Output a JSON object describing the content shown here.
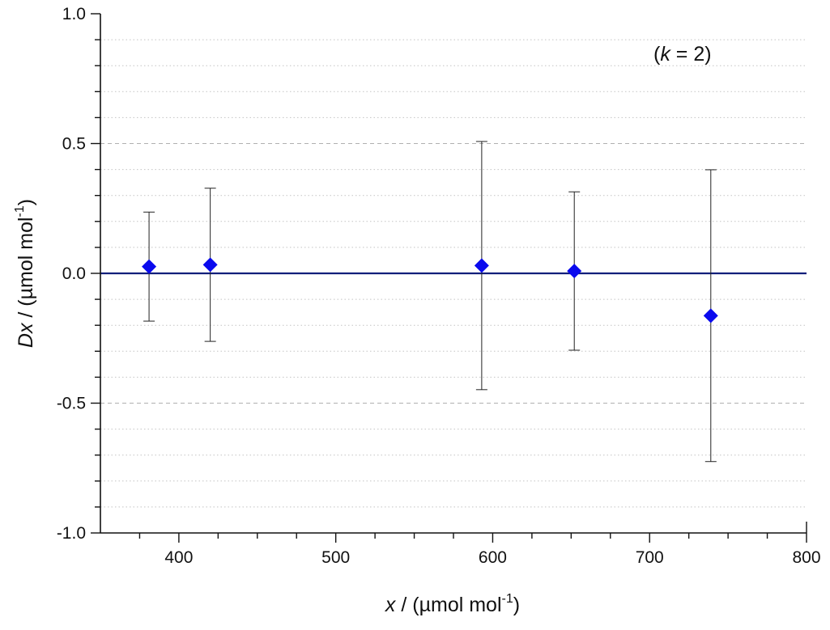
{
  "chart_data": {
    "type": "scatter",
    "xlabel": {
      "var": "x",
      "rest": " / (µmol mol",
      "sup": "-1",
      "close": ")"
    },
    "ylabel": {
      "var": "Dx",
      "rest": " / (µmol mol",
      "sup": "-1",
      "close": ")"
    },
    "annotation": {
      "open": "(",
      "var": "k",
      "rest": " = 2)"
    },
    "xlim": [
      350,
      800
    ],
    "ylim": [
      -1.0,
      1.0
    ],
    "x_ticks": [
      400,
      500,
      600,
      700,
      800
    ],
    "x_tick_labels": [
      "400",
      "500",
      "600",
      "700",
      "800"
    ],
    "y_ticks": [
      -1.0,
      -0.5,
      0.0,
      0.5,
      1.0
    ],
    "y_tick_labels": [
      "-1.0",
      "-0.5",
      "0.0",
      "0.5",
      "1.0"
    ],
    "reference_line_y": 0.0,
    "grid": {
      "major_y": "dashed",
      "minor_y": "dotted"
    },
    "series": [
      {
        "points": [
          {
            "x": 381,
            "y": 0.026,
            "err": 0.21
          },
          {
            "x": 420,
            "y": 0.033,
            "err": 0.295
          },
          {
            "x": 593,
            "y": 0.03,
            "err": 0.478
          },
          {
            "x": 652,
            "y": 0.009,
            "err": 0.305
          },
          {
            "x": 739,
            "y": -0.163,
            "err": 0.562
          }
        ]
      }
    ],
    "colors": {
      "marker": "#0a0aee",
      "reference_line": "#101f7a",
      "errorbar": "#222222"
    }
  }
}
